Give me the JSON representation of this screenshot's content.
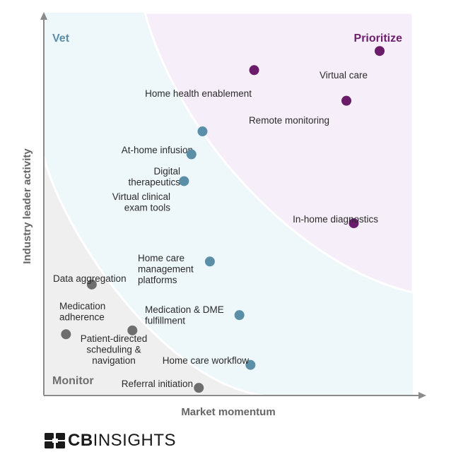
{
  "chart_data": {
    "type": "scatter",
    "title": "",
    "xlabel": "Market momentum",
    "ylabel": "Industry leader activity",
    "xlim": [
      0,
      100
    ],
    "ylim": [
      0,
      100
    ],
    "grid": false,
    "zones": [
      {
        "name": "Vet",
        "color": "#5b8fa8",
        "fill": "#eef7fa"
      },
      {
        "name": "Prioritize",
        "color": "#6d1f6d",
        "fill": "#f6eef8"
      },
      {
        "name": "Monitor",
        "color": "#6e6e6e",
        "fill": "#efefef"
      }
    ],
    "series": [
      {
        "category": "Prioritize",
        "color": "#6a1b6a",
        "points": [
          {
            "label": "Virtual care",
            "x": 91,
            "y": 90
          },
          {
            "label": "Home health enablement",
            "x": 57,
            "y": 85
          },
          {
            "label": "Remote monitoring",
            "x": 82,
            "y": 77
          },
          {
            "label": "In-home diagnostics",
            "x": 84,
            "y": 45
          }
        ]
      },
      {
        "category": "Vet",
        "color": "#5b8fa8",
        "points": [
          {
            "label": "At-home infusion",
            "x": 43,
            "y": 69
          },
          {
            "label": "Digital therapeutics",
            "x": 40,
            "y": 63
          },
          {
            "label": "Virtual clinical exam tools",
            "x": 38,
            "y": 56
          },
          {
            "label": "Home care management platforms",
            "x": 45,
            "y": 35
          },
          {
            "label": "Medication & DME fulfillment",
            "x": 53,
            "y": 21
          },
          {
            "label": "Home care workflow",
            "x": 56,
            "y": 8
          }
        ]
      },
      {
        "category": "Monitor",
        "color": "#6e6e6e",
        "points": [
          {
            "label": "Data aggregation",
            "x": 13,
            "y": 29
          },
          {
            "label": "Medication adherence",
            "x": 6,
            "y": 16
          },
          {
            "label": "Patient-directed scheduling & navigation",
            "x": 24,
            "y": 17
          },
          {
            "label": "Referral initiation",
            "x": 42,
            "y": 2
          }
        ]
      }
    ]
  },
  "brand": {
    "bold": "CB",
    "light": "INSIGHTS",
    "logo_icon": "cb-logo-icon"
  }
}
